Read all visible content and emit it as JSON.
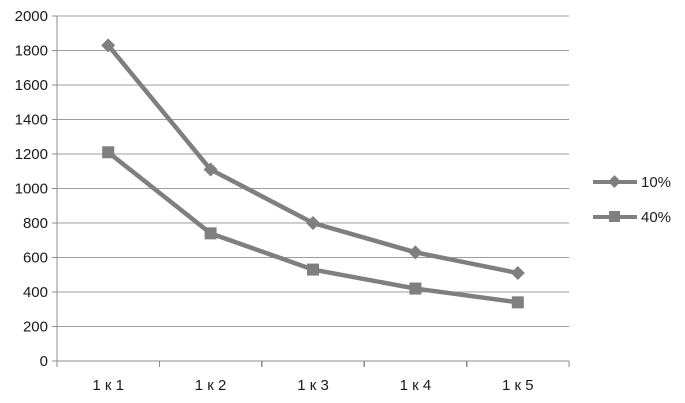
{
  "chart_data": {
    "type": "line",
    "categories": [
      "1 к 1",
      "1 к 2",
      "1 к 3",
      "1 к 4",
      "1 к 5"
    ],
    "series": [
      {
        "name": "10%",
        "marker": "diamond",
        "values": [
          1830,
          1110,
          800,
          630,
          510
        ]
      },
      {
        "name": "40%",
        "marker": "square",
        "values": [
          1210,
          740,
          530,
          420,
          340
        ]
      }
    ],
    "title": "",
    "xlabel": "",
    "ylabel": "",
    "ylim": [
      0,
      2000
    ],
    "ytick_step": 200,
    "grid": true,
    "legend_position": "right",
    "colors": {
      "series": "#7f7f7f",
      "gridline": "#9d9d9d",
      "axis": "#8c8c8c",
      "text": "#1a1a1a",
      "background": "#ffffff"
    }
  }
}
